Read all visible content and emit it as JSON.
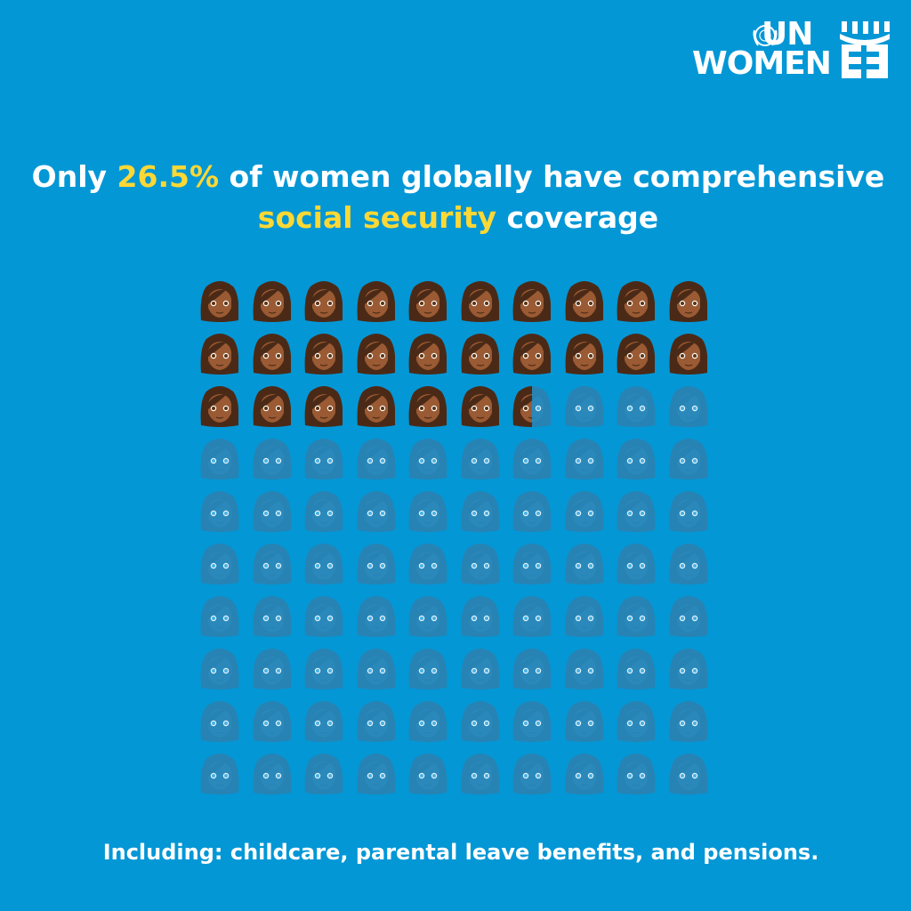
{
  "logo": {
    "line1": "UN",
    "line2": "WOMEN"
  },
  "headline": {
    "part1": "Only ",
    "highlight1": "26.5%",
    "part2": " of women globally have comprehensive ",
    "highlight2": "social security",
    "part3": " coverage"
  },
  "footnote": "Including: childcare, parental leave benefits, and pensions.",
  "colors": {
    "background": "#0397d6",
    "highlight": "#fcd835",
    "covered_hair": "#4a2a17",
    "covered_skin": "#9a5a33",
    "uncovered": "#2a7fad"
  },
  "chart_data": {
    "type": "pictogram",
    "total_icons": 100,
    "grid": {
      "rows": 10,
      "columns": 10
    },
    "icon": "woman-emoji",
    "covered_value": 26.5,
    "unit": "%"
  }
}
